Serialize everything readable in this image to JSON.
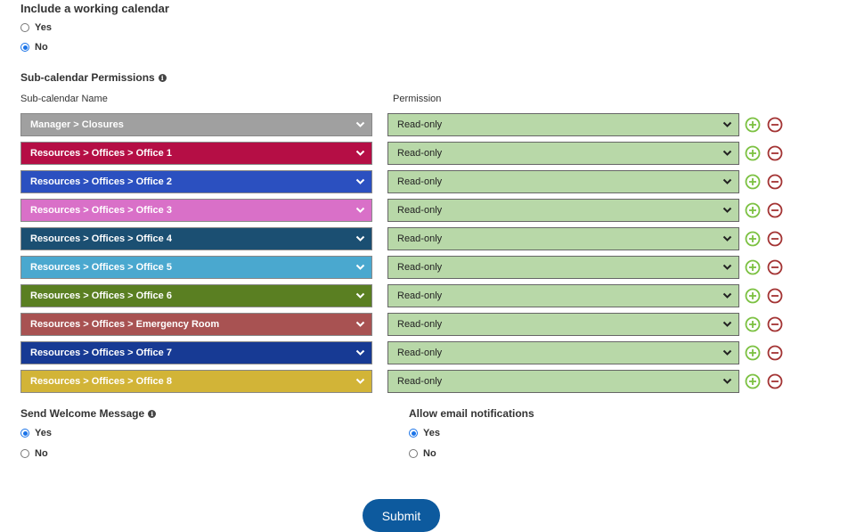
{
  "working_calendar": {
    "title": "Include a working calendar",
    "options": [
      {
        "label": "Yes",
        "checked": false
      },
      {
        "label": "No",
        "checked": true
      }
    ]
  },
  "permissions": {
    "title": "Sub-calendar Permissions",
    "col_name": "Sub-calendar Name",
    "col_permission": "Permission",
    "rows": [
      {
        "name": "Manager > Closures",
        "color": "#a0a0a0",
        "permission": "Read-only"
      },
      {
        "name": "Resources > Offices > Office 1",
        "color": "#b50e45",
        "permission": "Read-only"
      },
      {
        "name": "Resources > Offices > Office 2",
        "color": "#2b50c0",
        "permission": "Read-only"
      },
      {
        "name": "Resources > Offices > Office 3",
        "color": "#d970c8",
        "permission": "Read-only"
      },
      {
        "name": "Resources > Offices > Office 4",
        "color": "#1b4f72",
        "permission": "Read-only"
      },
      {
        "name": "Resources > Offices > Office 5",
        "color": "#4aa8cf",
        "permission": "Read-only"
      },
      {
        "name": "Resources > Offices > Office 6",
        "color": "#5a7f22",
        "permission": "Read-only"
      },
      {
        "name": "Resources > Offices > Emergency Room",
        "color": "#a85252",
        "permission": "Read-only"
      },
      {
        "name": "Resources > Offices > Office 7",
        "color": "#173a94",
        "permission": "Read-only"
      },
      {
        "name": "Resources > Offices > Office 8",
        "color": "#d2b437",
        "permission": "Read-only"
      }
    ]
  },
  "welcome": {
    "title": "Send Welcome Message",
    "options": [
      {
        "label": "Yes",
        "checked": true
      },
      {
        "label": "No",
        "checked": false
      }
    ]
  },
  "email": {
    "title": "Allow email notifications",
    "options": [
      {
        "label": "Yes",
        "checked": true
      },
      {
        "label": "No",
        "checked": false
      }
    ]
  },
  "icons": {
    "add": "add-circle-icon",
    "remove": "remove-circle-icon",
    "info": "info-icon",
    "chevron": "chevron-down-icon"
  },
  "colors": {
    "permission_bg": "#b8d8a8",
    "add": "#7cc142",
    "remove": "#a33333",
    "submit": "#0d5a9e",
    "radio_checked": "#1a73e8"
  },
  "submit_label": "Submit"
}
